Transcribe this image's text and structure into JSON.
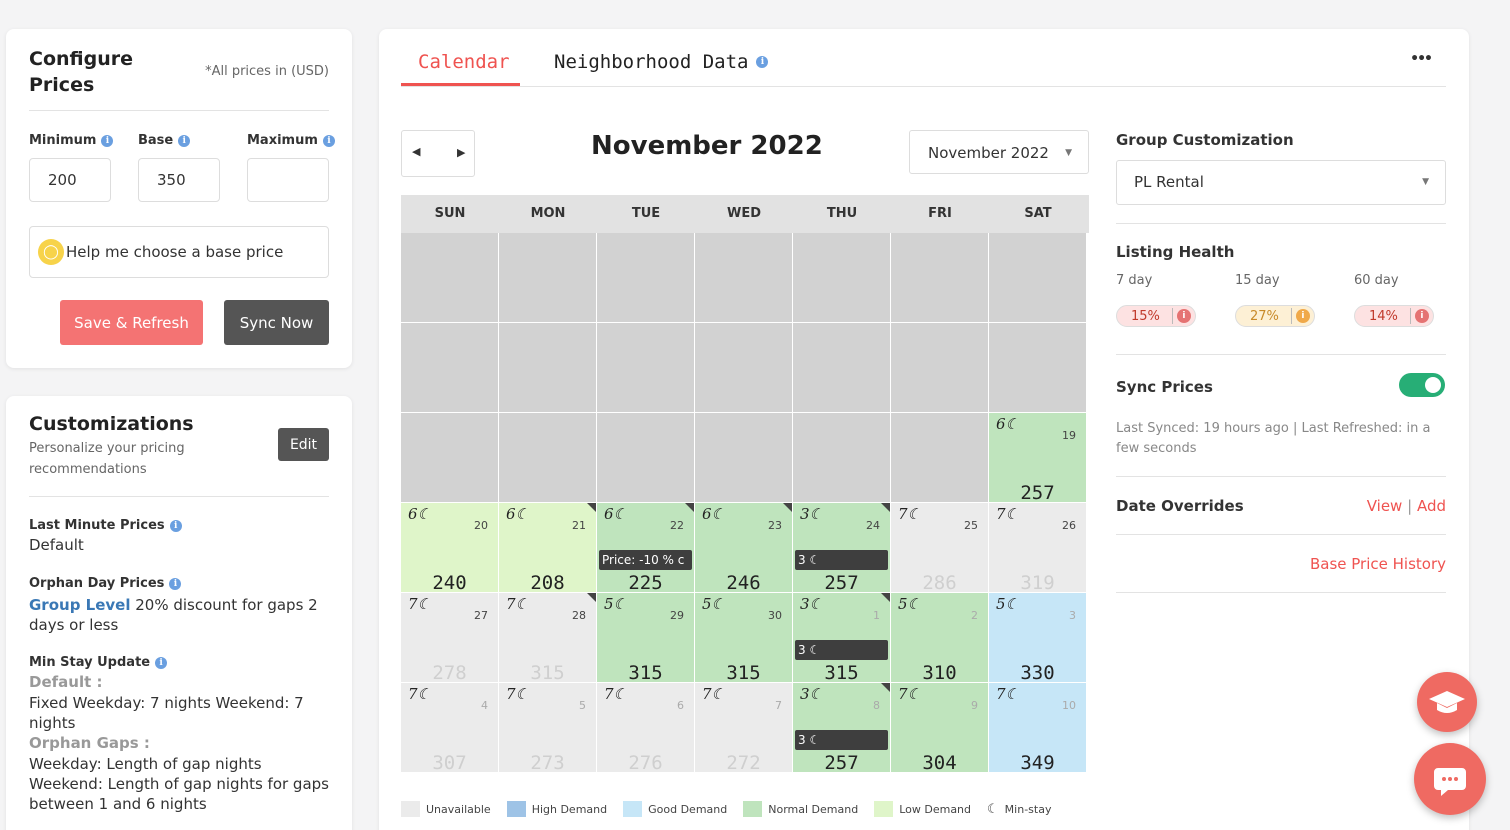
{
  "config": {
    "title_line1": "Configure",
    "title_line2": "Prices",
    "currency_note": "*All prices in (USD)",
    "minimum_label": "Minimum",
    "base_label": "Base",
    "maximum_label": "Maximum",
    "minimum_value": "200",
    "base_value": "350",
    "maximum_value": "",
    "help_button": "Help me choose a base price",
    "save_button": "Save & Refresh",
    "sync_button": "Sync Now"
  },
  "customizations": {
    "title": "Customizations",
    "subtitle": "Personalize your pricing recommendations",
    "edit_button": "Edit",
    "last_minute_label": "Last Minute Prices",
    "last_minute_value": "Default",
    "orphan_label": "Orphan Day Prices",
    "orphan_group": "Group Level",
    "orphan_value": " 20% discount for gaps 2 days or less",
    "min_stay_label": "Min Stay Update",
    "min_stay_default_label": "Default :",
    "min_stay_default_value": "Fixed Weekday: 7 nights Weekend: 7 nights",
    "orphan_gaps_label": "Orphan Gaps :",
    "orphan_gaps_value": "Weekday: Length of gap nights Weekend: Length of gap nights for gaps between 1 and 6 nights"
  },
  "tabs": {
    "calendar": "Calendar",
    "neighborhood": "Neighborhood Data",
    "more": "•••"
  },
  "calendar": {
    "month_title": "November 2022",
    "month_select": "November 2022",
    "days": [
      "SUN",
      "MON",
      "TUE",
      "WED",
      "THU",
      "FRI",
      "SAT"
    ],
    "rows": [
      [
        null,
        null,
        null,
        null,
        null,
        null,
        null
      ],
      [
        null,
        null,
        null,
        null,
        null,
        null,
        null
      ],
      [
        null,
        null,
        null,
        null,
        null,
        null,
        {
          "ms": "6☾",
          "day": "19",
          "price": "257",
          "demand": "normal"
        }
      ],
      [
        {
          "ms": "6☾",
          "day": "20",
          "price": "240",
          "demand": "low"
        },
        {
          "ms": "6☾",
          "day": "21",
          "price": "208",
          "demand": "low",
          "corner": true
        },
        {
          "ms": "6☾",
          "day": "22",
          "price": "225",
          "demand": "normal",
          "corner": true,
          "tag": "Price: -10 % c"
        },
        {
          "ms": "6☾",
          "day": "23",
          "price": "246",
          "demand": "normal",
          "corner": true
        },
        {
          "ms": "3☾",
          "day": "24",
          "price": "257",
          "demand": "normal",
          "corner": true,
          "tag": "3 ☾"
        },
        {
          "ms": "7☾",
          "day": "25",
          "price": "286",
          "demand": "unavail",
          "faded": true
        },
        {
          "ms": "7☾",
          "day": "26",
          "price": "319",
          "demand": "unavail",
          "faded": true
        }
      ],
      [
        {
          "ms": "7☾",
          "day": "27",
          "price": "278",
          "demand": "unavail",
          "faded": true
        },
        {
          "ms": "7☾",
          "day": "28",
          "price": "315",
          "demand": "unavail",
          "faded": true,
          "corner": true
        },
        {
          "ms": "5☾",
          "day": "29",
          "price": "315",
          "demand": "normal"
        },
        {
          "ms": "5☾",
          "day": "30",
          "price": "315",
          "demand": "normal"
        },
        {
          "ms": "3☾",
          "day": "1",
          "price": "315",
          "demand": "normal",
          "corner": true,
          "tag": "3 ☾",
          "dayfaded": true
        },
        {
          "ms": "5☾",
          "day": "2",
          "price": "310",
          "demand": "normal",
          "dayfaded": true
        },
        {
          "ms": "5☾",
          "day": "3",
          "price": "330",
          "demand": "good",
          "dayfaded": true
        }
      ],
      [
        {
          "ms": "7☾",
          "day": "4",
          "price": "307",
          "demand": "unavail",
          "faded": true,
          "dayfaded": true
        },
        {
          "ms": "7☾",
          "day": "5",
          "price": "273",
          "demand": "unavail",
          "faded": true,
          "dayfaded": true
        },
        {
          "ms": "7☾",
          "day": "6",
          "price": "276",
          "demand": "unavail",
          "faded": true,
          "dayfaded": true
        },
        {
          "ms": "7☾",
          "day": "7",
          "price": "272",
          "demand": "unavail",
          "faded": true,
          "dayfaded": true
        },
        {
          "ms": "3☾",
          "day": "8",
          "price": "257",
          "demand": "normal",
          "corner": true,
          "tag": "3 ☾",
          "dayfaded": true
        },
        {
          "ms": "7☾",
          "day": "9",
          "price": "304",
          "demand": "normal",
          "dayfaded": true
        },
        {
          "ms": "7☾",
          "day": "10",
          "price": "349",
          "demand": "good",
          "dayfaded": true
        }
      ]
    ],
    "legend": [
      {
        "label": "Unavailable",
        "color": "#ebebeb"
      },
      {
        "label": "High Demand",
        "color": "#9ec3e6"
      },
      {
        "label": "Good Demand",
        "color": "#c6e6f7"
      },
      {
        "label": "Normal Demand",
        "color": "#bfe4bd"
      },
      {
        "label": "Low Demand",
        "color": "#dff5c9"
      }
    ],
    "legend_minstay": "Min-stay"
  },
  "right_panel": {
    "group_label": "Group Customization",
    "group_value": "PL Rental",
    "health_label": "Listing Health",
    "health": [
      {
        "period": "7 day",
        "value": "15%",
        "color": "#fde2e2",
        "dot": "#e57373",
        "text": "#c0392b"
      },
      {
        "period": "15 day",
        "value": "27%",
        "color": "#fdf0d5",
        "dot": "#f0a94a",
        "text": "#c88a2a"
      },
      {
        "period": "60 day",
        "value": "14%",
        "color": "#fde2e2",
        "dot": "#e57373",
        "text": "#c0392b"
      }
    ],
    "sync_label": "Sync Prices",
    "sync_status": "Last Synced: 19 hours ago | Last Refreshed: in a few seconds",
    "overrides_label": "Date Overrides",
    "view_link": "View",
    "add_link": "Add",
    "base_history_link": "Base Price History"
  },
  "colors": {
    "accent": "#ef5350",
    "sync_button": "#555555",
    "save_button": "#f47373"
  }
}
